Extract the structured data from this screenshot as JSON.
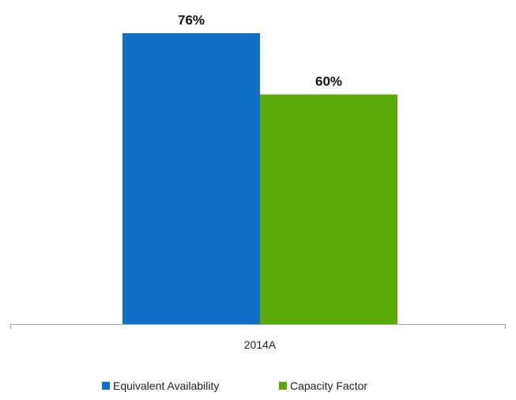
{
  "chart_data": {
    "type": "bar",
    "categories": [
      "2014A"
    ],
    "series": [
      {
        "name": "Equivalent Availability",
        "values": [
          76
        ],
        "labels": [
          "76%"
        ],
        "color": "#0f6fc6"
      },
      {
        "name": "Capacity Factor",
        "values": [
          60
        ],
        "labels": [
          "60%"
        ],
        "color": "#5aaa08"
      }
    ],
    "title": "",
    "xlabel": "",
    "ylabel": "",
    "ylim": [
      0,
      80
    ],
    "unit": "%",
    "grid": false,
    "legend_position": "bottom",
    "axis_color": "#a6a6a6"
  }
}
